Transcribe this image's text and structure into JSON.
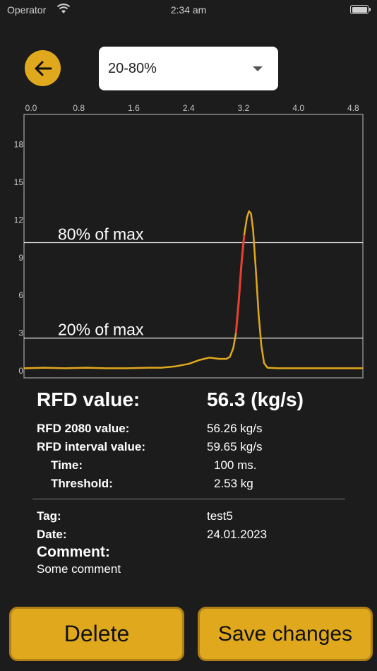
{
  "status_bar": {
    "carrier": "Operator",
    "time": "2:34 am"
  },
  "header": {
    "back_icon": "arrow-left-icon",
    "range_select": {
      "value": "20-80%"
    }
  },
  "colors": {
    "accent": "#e0a81c",
    "curve": "#e0a81c",
    "highlight": "#e8402e",
    "background": "#1c1c1c"
  },
  "chart_data": {
    "type": "line",
    "x_ticks": [
      "0.0",
      "0.8",
      "1.6",
      "2.4",
      "3.2",
      "4.0",
      "4.8"
    ],
    "y_ticks": [
      "0",
      "3",
      "6",
      "9",
      "12",
      "15",
      "18"
    ],
    "xlim": [
      0,
      4.94
    ],
    "ylim": [
      0,
      20.4
    ],
    "annotations": [
      {
        "label": "80% of max",
        "y": 10.2
      },
      {
        "label": "20% of max",
        "y": 2.6
      }
    ],
    "series": [
      {
        "values": [
          [
            0,
            0.2
          ],
          [
            0.3,
            0.25
          ],
          [
            0.6,
            0.2
          ],
          [
            0.9,
            0.25
          ],
          [
            1.2,
            0.2
          ],
          [
            1.5,
            0.2
          ],
          [
            1.8,
            0.25
          ],
          [
            2.0,
            0.25
          ],
          [
            2.2,
            0.35
          ],
          [
            2.4,
            0.55
          ],
          [
            2.55,
            0.85
          ],
          [
            2.7,
            1.05
          ],
          [
            2.85,
            0.95
          ],
          [
            2.95,
            0.95
          ],
          [
            3.0,
            1.1
          ],
          [
            3.05,
            1.8
          ],
          [
            3.09,
            3.0
          ],
          [
            3.13,
            5.5
          ],
          [
            3.17,
            8.5
          ],
          [
            3.21,
            10.8
          ],
          [
            3.25,
            12.2
          ],
          [
            3.28,
            12.7
          ],
          [
            3.31,
            12.5
          ],
          [
            3.34,
            11.2
          ],
          [
            3.38,
            8.0
          ],
          [
            3.42,
            4.5
          ],
          [
            3.46,
            2.0
          ],
          [
            3.5,
            0.6
          ],
          [
            3.55,
            0.25
          ],
          [
            3.7,
            0.2
          ],
          [
            4.0,
            0.2
          ],
          [
            4.4,
            0.2
          ],
          [
            4.94,
            0.2
          ]
        ]
      }
    ],
    "highlight_x": [
      3.09,
      3.21
    ]
  },
  "metrics": {
    "rfd_label": "RFD value:",
    "rfd_value": "56.3 (kg/s)",
    "rfd2080_label": "RFD 2080 value:",
    "rfd2080_value": "56.26 kg/s",
    "interval_label": "RFD interval value:",
    "interval_value": "59.65 kg/s",
    "time_label": "Time:",
    "time_value": "100 ms.",
    "threshold_label": "Threshold:",
    "threshold_value": "2.53 kg"
  },
  "details": {
    "tag_label": "Tag:",
    "tag_value": "test5",
    "date_label": "Date:",
    "date_value": "24.01.2023",
    "comment_label": "Comment:",
    "comment_value": "Some comment"
  },
  "actions": {
    "delete_label": "Delete",
    "save_label": "Save changes"
  }
}
